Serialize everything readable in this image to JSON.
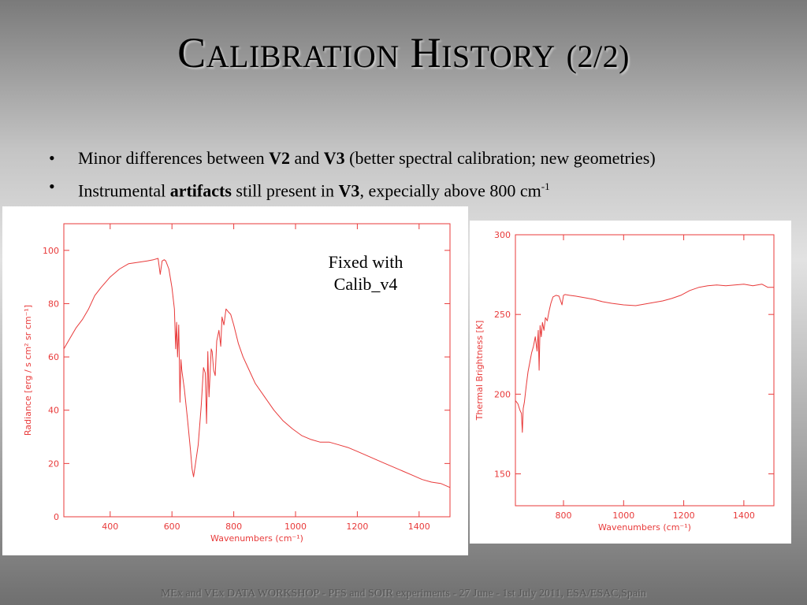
{
  "slide": {
    "title": {
      "cap1": "C",
      "rest1": "alibration",
      "cap2": "H",
      "rest2": "istory",
      "suffix": "(2/2)"
    },
    "bullets": [
      {
        "dot": "•",
        "t1": "Minor differences between ",
        "b1": "V2",
        "t2": " and ",
        "b2": "V3",
        "t3": " (better spectral calibration; new geometries)"
      },
      {
        "dot": "•",
        "t1": "Instrumental ",
        "b1": "artifacts",
        "t2": " still present in ",
        "b2": "V3",
        "t3": ", expecially above 800 cm",
        "sup": "-1"
      }
    ],
    "annotation": "Fixed with\nCalib_v4",
    "footer": "MEx and VEx DATA WORKSHOP - PFS and SOIR experiments - 27 June - 1st July 2011, ESA/ESAC,Spain",
    "line_color": "#e83a3a"
  },
  "chart_data": [
    {
      "type": "line",
      "title": "",
      "xlabel": "Wavenumbers (cm⁻¹)",
      "ylabel": "Radiance [erg / s cm² sr cm⁻¹]",
      "xlim": [
        250,
        1500
      ],
      "ylim": [
        0,
        110
      ],
      "xticks": [
        400,
        600,
        800,
        1000,
        1200,
        1400
      ],
      "yticks": [
        0,
        20,
        40,
        60,
        80,
        100
      ],
      "grid": false,
      "series": [
        {
          "x": [
            250,
            270,
            290,
            310,
            330,
            350,
            370,
            400,
            430,
            460,
            490,
            520,
            540,
            555,
            562,
            568,
            575,
            580,
            590,
            600,
            608,
            612,
            615,
            618,
            622,
            626,
            629,
            632,
            640,
            650,
            660,
            665,
            670,
            675,
            685,
            695,
            702,
            708,
            712,
            716,
            720,
            724,
            727,
            730,
            735,
            740,
            745,
            752,
            758,
            762,
            768,
            775,
            782,
            790,
            800,
            815,
            830,
            850,
            870,
            900,
            930,
            960,
            990,
            1020,
            1050,
            1080,
            1110,
            1140,
            1170,
            1200,
            1230,
            1260,
            1290,
            1320,
            1350,
            1380,
            1410,
            1440,
            1470,
            1500
          ],
          "y": [
            63,
            67,
            71,
            74,
            78,
            83,
            86,
            90,
            93,
            95,
            95.5,
            96,
            96.5,
            97,
            91,
            96,
            96.5,
            96,
            93,
            86,
            78,
            63,
            73,
            60,
            72,
            43,
            59,
            55,
            48,
            37,
            25,
            18,
            15,
            19,
            27,
            42,
            56,
            54,
            35,
            62,
            45,
            55,
            63,
            62,
            55,
            53,
            66,
            70,
            64,
            75,
            72,
            78,
            77,
            76,
            72,
            65,
            60,
            55,
            50,
            45,
            40,
            36,
            33,
            30.5,
            29,
            28,
            28,
            27,
            26,
            24.5,
            23,
            21.5,
            20,
            18.5,
            17,
            15.5,
            14,
            13,
            12.5,
            11
          ]
        }
      ]
    },
    {
      "type": "line",
      "title": "",
      "xlabel": "Wavenumbers (cm⁻¹)",
      "ylabel": "Thermal Brightness [K]",
      "xlim": [
        640,
        1500
      ],
      "ylim": [
        130,
        300
      ],
      "xticks": [
        800,
        1000,
        1200,
        1400
      ],
      "yticks": [
        150,
        200,
        250,
        300
      ],
      "grid": false,
      "series": [
        {
          "x": [
            640,
            648,
            655,
            660,
            663,
            666,
            670,
            676,
            682,
            688,
            694,
            700,
            706,
            712,
            716,
            719,
            722,
            726,
            730,
            735,
            740,
            746,
            752,
            758,
            765,
            775,
            785,
            795,
            800,
            805,
            820,
            840,
            870,
            900,
            930,
            960,
            1000,
            1040,
            1070,
            1100,
            1130,
            1160,
            1190,
            1220,
            1250,
            1280,
            1310,
            1340,
            1370,
            1400,
            1430,
            1460,
            1480,
            1500
          ],
          "y": [
            196,
            194,
            190,
            188,
            176,
            191,
            195,
            205,
            214,
            220,
            226,
            230,
            236,
            227,
            240,
            215,
            243,
            236,
            245,
            240,
            248,
            246,
            252,
            257,
            261,
            262,
            261.5,
            256,
            262,
            262.5,
            262,
            261.5,
            260.5,
            259.5,
            258,
            257,
            256,
            255.5,
            256.5,
            257.5,
            258.5,
            260,
            262,
            265,
            267,
            268,
            268.5,
            268,
            268.5,
            269,
            268,
            269,
            267,
            267
          ]
        }
      ]
    }
  ]
}
